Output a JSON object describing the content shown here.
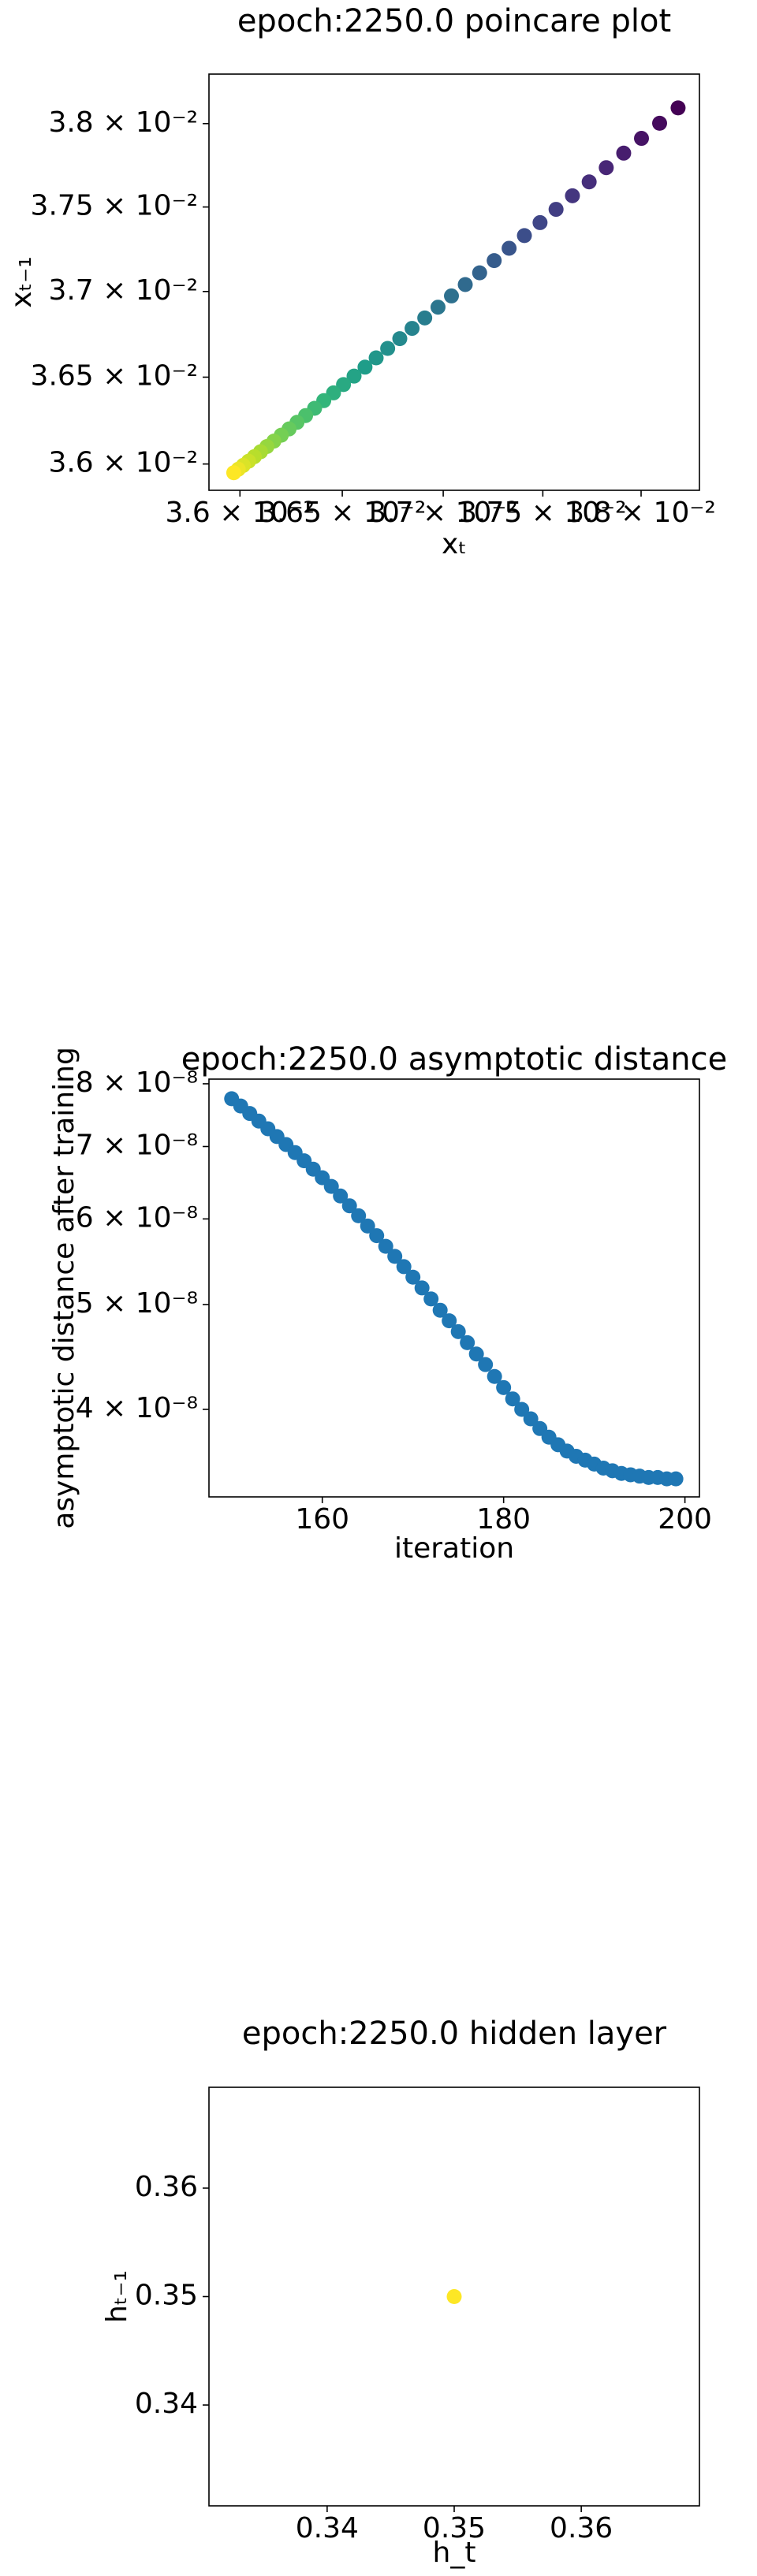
{
  "chart_data": [
    {
      "type": "scatter",
      "title": "epoch:2250.0 poincare plot",
      "xlabel": "xₜ",
      "ylabel": "xₜ₋₁",
      "xscale": "log",
      "yscale": "log",
      "colormap": "viridis",
      "xlim": [
        0.03585,
        0.0383
      ],
      "ylim": [
        0.03585,
        0.0383
      ],
      "xticks": [
        {
          "value": 0.036,
          "label": "3.6 × 10⁻²"
        },
        {
          "value": 0.0365,
          "label": "3.65 × 10⁻²"
        },
        {
          "value": 0.037,
          "label": "3.7 × 10⁻²"
        },
        {
          "value": 0.0375,
          "label": "3.75 × 10⁻²"
        },
        {
          "value": 0.038,
          "label": "3.8 × 10⁻²"
        }
      ],
      "yticks": [
        {
          "value": 0.036,
          "label": "3.6 × 10⁻²"
        },
        {
          "value": 0.0365,
          "label": "3.65 × 10⁻²"
        },
        {
          "value": 0.037,
          "label": "3.7 × 10⁻²"
        },
        {
          "value": 0.0375,
          "label": "3.75 × 10⁻²"
        },
        {
          "value": 0.038,
          "label": "3.8 × 10⁻²"
        }
      ],
      "x": [
        0.03819,
        0.038095,
        0.038002,
        0.037911,
        0.037822,
        0.037735,
        0.03765,
        0.037567,
        0.037486,
        0.037407,
        0.03733,
        0.037255,
        0.037182,
        0.03711,
        0.037041,
        0.036974,
        0.036908,
        0.036845,
        0.036784,
        0.036724,
        0.036667,
        0.036612,
        0.036558,
        0.036506,
        0.036457,
        0.036409,
        0.036364,
        0.03632,
        0.036278,
        0.036239,
        0.036201,
        0.036165,
        0.036131,
        0.0361,
        0.03607,
        0.036042,
        0.036016,
        0.035992,
        0.03597
      ],
      "y": [
        0.038095,
        0.038002,
        0.037911,
        0.037822,
        0.037735,
        0.03765,
        0.037567,
        0.037486,
        0.037407,
        0.03733,
        0.037255,
        0.037182,
        0.03711,
        0.037041,
        0.036974,
        0.036908,
        0.036845,
        0.036784,
        0.036724,
        0.036667,
        0.036612,
        0.036558,
        0.036506,
        0.036457,
        0.036409,
        0.036364,
        0.03632,
        0.036278,
        0.036239,
        0.036201,
        0.036165,
        0.036131,
        0.0361,
        0.03607,
        0.036042,
        0.036016,
        0.035992,
        0.03597,
        0.03595
      ]
    },
    {
      "type": "scatter",
      "title": "epoch:2250.0 asymptotic distance",
      "xlabel": "iteration",
      "ylabel": "asymptotic distance after training",
      "xscale": "linear",
      "yscale": "log",
      "color": "#1f77b4",
      "xlim": [
        147.5,
        201.6
      ],
      "ylim": [
        3.32e-08,
        8.08e-08
      ],
      "xticks": [
        160,
        180,
        200
      ],
      "yticks": [
        {
          "value": 4e-08,
          "label": "4 × 10⁻⁸"
        },
        {
          "value": 5e-08,
          "label": "5 × 10⁻⁸"
        },
        {
          "value": 6e-08,
          "label": "6 × 10⁻⁸"
        },
        {
          "value": 7e-08,
          "label": "7 × 10⁻⁸"
        },
        {
          "value": 8e-08,
          "label": "8 × 10⁻⁸"
        }
      ],
      "x": [
        150,
        151,
        152,
        153,
        154,
        155,
        156,
        157,
        158,
        159,
        160,
        161,
        162,
        163,
        164,
        165,
        166,
        167,
        168,
        169,
        170,
        171,
        172,
        173,
        174,
        175,
        176,
        177,
        178,
        179,
        180,
        181,
        182,
        183,
        184,
        185,
        186,
        187,
        188,
        189,
        190,
        191,
        192,
        193,
        194,
        195,
        196,
        197,
        198,
        199
      ],
      "y": [
        7.75e-08,
        7.63e-08,
        7.51e-08,
        7.39e-08,
        7.27e-08,
        7.15e-08,
        7.03e-08,
        6.91e-08,
        6.79e-08,
        6.67e-08,
        6.55e-08,
        6.43e-08,
        6.3e-08,
        6.17e-08,
        6.04e-08,
        5.91e-08,
        5.79e-08,
        5.66e-08,
        5.54e-08,
        5.42e-08,
        5.3e-08,
        5.18e-08,
        5.06e-08,
        4.94e-08,
        4.83e-08,
        4.72e-08,
        4.61e-08,
        4.5e-08,
        4.4e-08,
        4.29e-08,
        4.19e-08,
        4.09e-08,
        4e-08,
        3.92e-08,
        3.84e-08,
        3.77e-08,
        3.71e-08,
        3.66e-08,
        3.62e-08,
        3.59e-08,
        3.56e-08,
        3.53e-08,
        3.51e-08,
        3.49e-08,
        3.48e-08,
        3.47e-08,
        3.46e-08,
        3.46e-08,
        3.45e-08,
        3.45e-08
      ]
    },
    {
      "type": "scatter",
      "title": "epoch:2250.0 hidden layer",
      "xlabel": "h_t",
      "ylabel": "hₜ₋₁",
      "xscale": "linear",
      "yscale": "linear",
      "color": "#fde725",
      "xlim": [
        0.3307,
        0.3693
      ],
      "ylim": [
        0.3307,
        0.3693
      ],
      "xticks": [
        0.34,
        0.35,
        0.36
      ],
      "yticks": [
        0.34,
        0.35,
        0.36
      ],
      "x": [
        0.35
      ],
      "y": [
        0.35
      ]
    }
  ]
}
